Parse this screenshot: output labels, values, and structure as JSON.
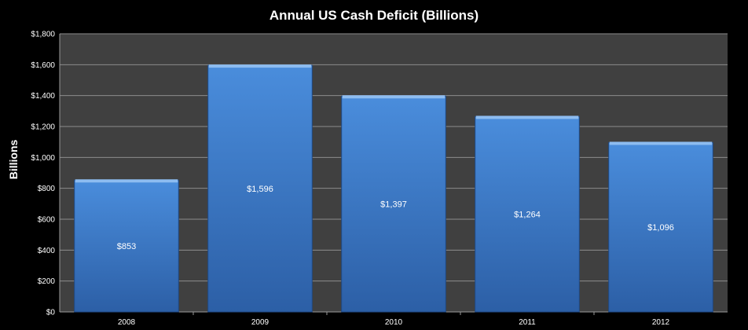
{
  "chart_data": {
    "type": "bar",
    "title": "Annual US Cash Deficit (Billions)",
    "xlabel": "",
    "ylabel": "Billions",
    "categories": [
      "2008",
      "2009",
      "2010",
      "2011",
      "2012"
    ],
    "values": [
      853,
      1596,
      1397,
      1264,
      1096
    ],
    "data_labels": [
      "$853",
      "$1,596",
      "$1,397",
      "$1,264",
      "$1,096"
    ],
    "ylim": [
      0,
      1800
    ],
    "yticks": [
      0,
      200,
      400,
      600,
      800,
      1000,
      1200,
      1400,
      1600,
      1800
    ],
    "ytick_labels": [
      "$0",
      "$200",
      "$400",
      "$600",
      "$800",
      "$1,000",
      "$1,200",
      "$1,400",
      "$1,600",
      "$1,800"
    ],
    "grid": true,
    "legend": "none",
    "colors": {
      "background": "#000000",
      "plot_area": "#404040",
      "gridline": "#8c8c8c",
      "bar_top": "#4a8ddc",
      "bar_bottom": "#2c5fa6",
      "bar_cap": "#8dbcf0",
      "text": "#ffffff"
    }
  }
}
